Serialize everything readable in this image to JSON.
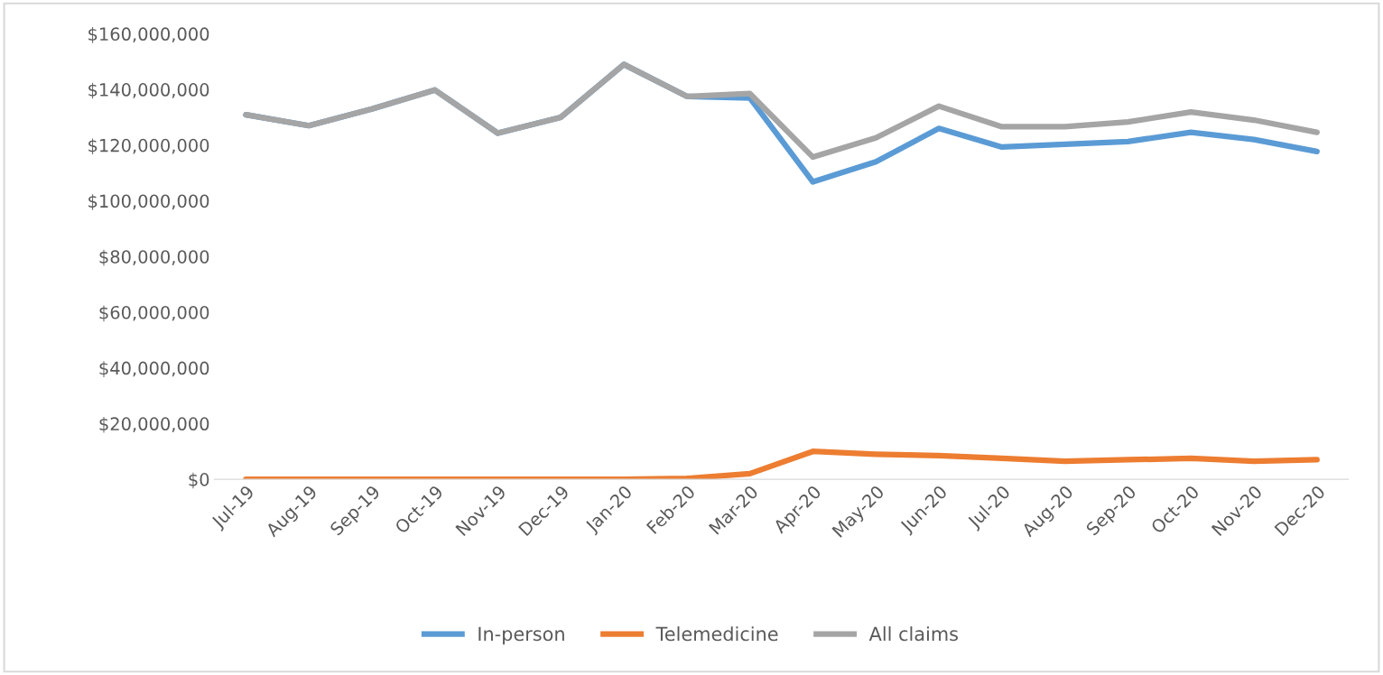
{
  "chart_data": {
    "type": "line",
    "categories": [
      "Jul-19",
      "Aug-19",
      "Sep-19",
      "Oct-19",
      "Nov-19",
      "Dec-19",
      "Jan-20",
      "Feb-20",
      "Mar-20",
      "Apr-20",
      "May-20",
      "Jun-20",
      "Jul-20",
      "Aug-20",
      "Sep-20",
      "Oct-20",
      "Nov-20",
      "Dec-20"
    ],
    "series": [
      {
        "name": "In-person",
        "color": "#5b9bd5",
        "values": [
          130900000,
          127000000,
          133000000,
          139800000,
          124300000,
          130000000,
          149000000,
          137500000,
          136900000,
          106800000,
          114000000,
          126000000,
          119300000,
          120300000,
          121300000,
          124600000,
          122000000,
          117700000
        ]
      },
      {
        "name": "Telemedicine",
        "color": "#ed7d31",
        "values": [
          0,
          0,
          0,
          0,
          0,
          0,
          0,
          300000,
          2000000,
          10000000,
          9000000,
          8500000,
          7500000,
          6500000,
          7000000,
          7500000,
          6500000,
          7000000
        ]
      },
      {
        "name": "All claims",
        "color": "#a5a5a5",
        "values": [
          130900000,
          127000000,
          133000000,
          139800000,
          124300000,
          130000000,
          149000000,
          137500000,
          138500000,
          115700000,
          122600000,
          134000000,
          126600000,
          126600000,
          128300000,
          131900000,
          129000000,
          124600000
        ]
      }
    ],
    "ylim": [
      0,
      160000000
    ],
    "yticks": [
      {
        "value": 0,
        "label": "$0"
      },
      {
        "value": 20000000,
        "label": "$20,000,000"
      },
      {
        "value": 40000000,
        "label": "$40,000,000"
      },
      {
        "value": 60000000,
        "label": "$60,000,000"
      },
      {
        "value": 80000000,
        "label": "$80,000,000"
      },
      {
        "value": 100000000,
        "label": "$100,000,000"
      },
      {
        "value": 120000000,
        "label": "$120,000,000"
      },
      {
        "value": 140000000,
        "label": "$140,000,000"
      },
      {
        "value": 160000000,
        "label": "$160,000,000"
      }
    ],
    "grid": false,
    "legend": "bottom",
    "marker": "none",
    "line_style": "solid"
  }
}
